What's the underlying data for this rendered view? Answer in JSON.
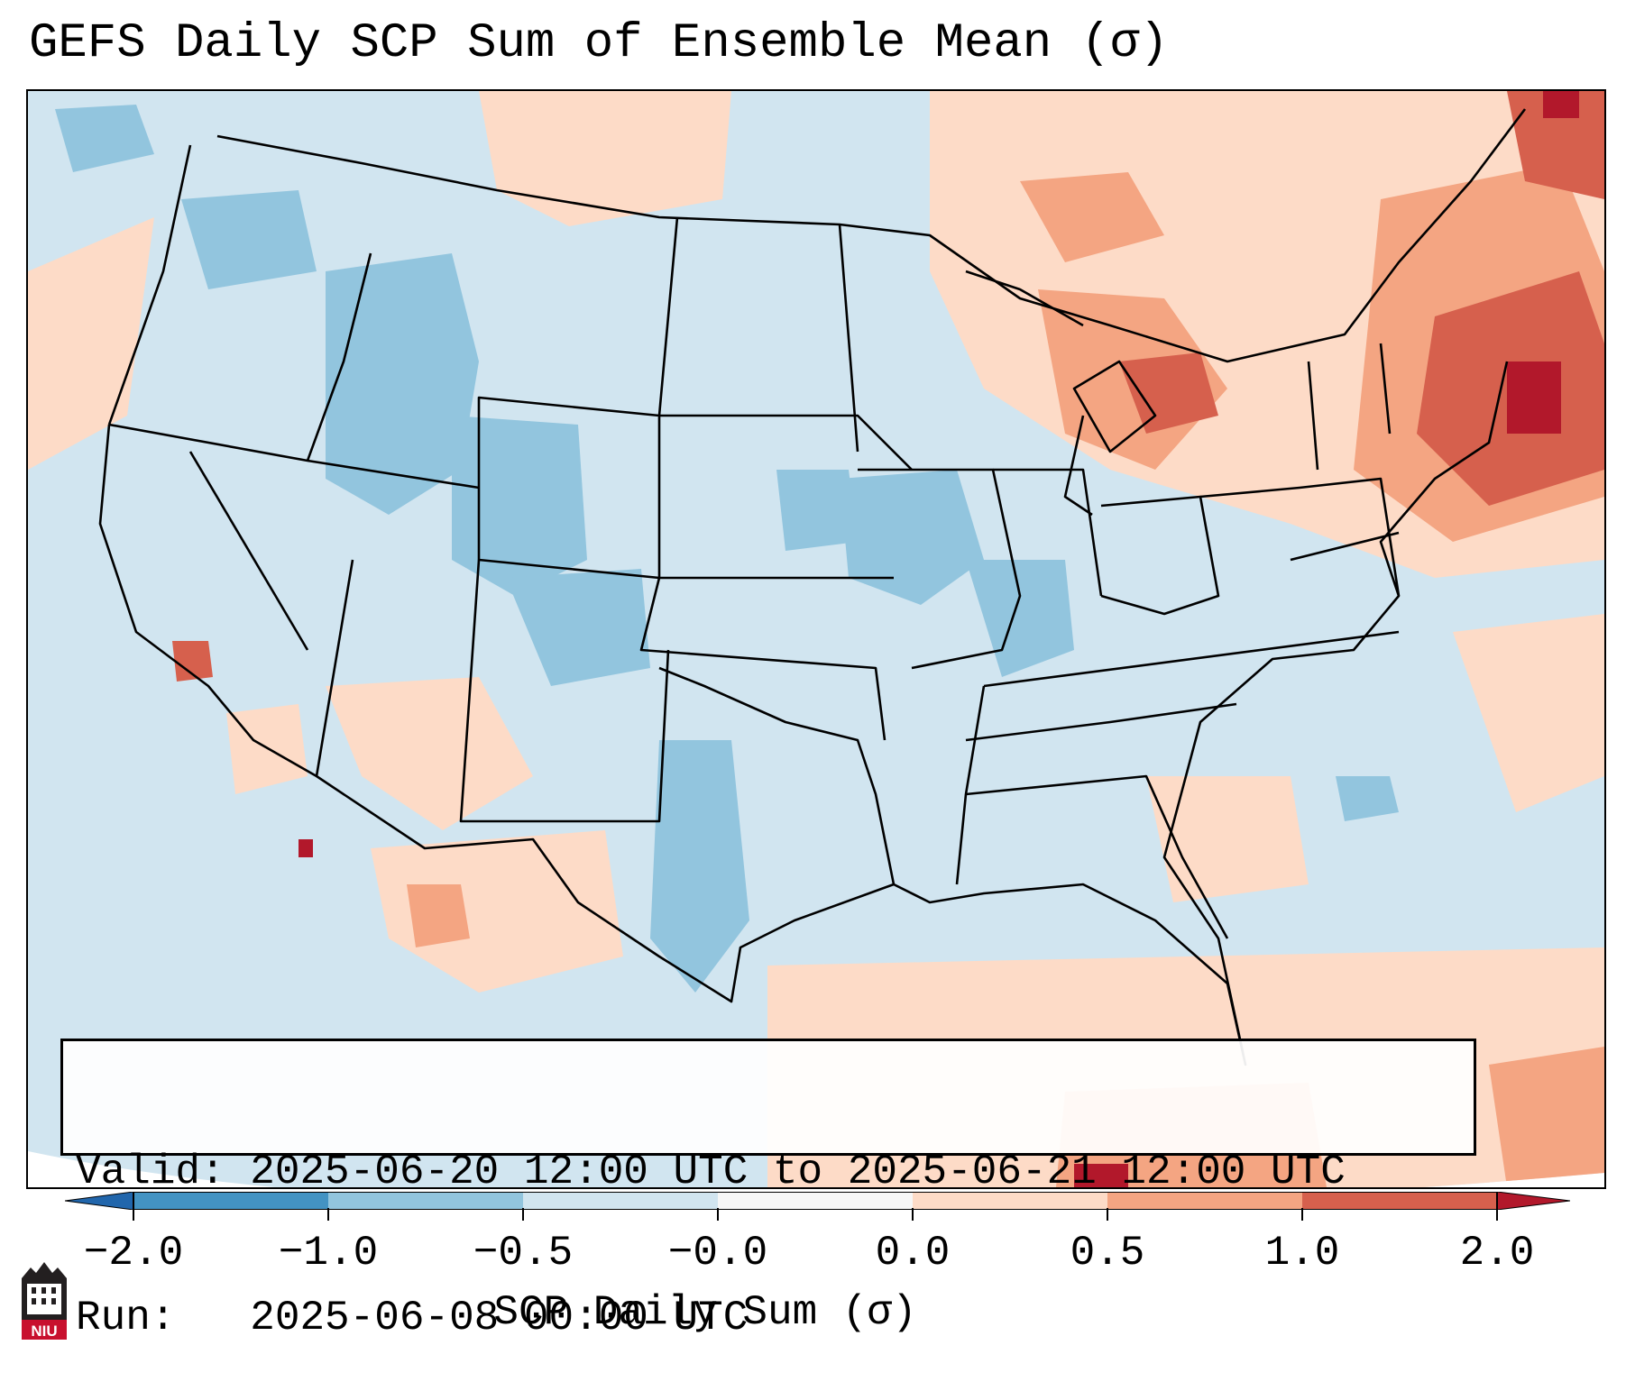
{
  "title": "GEFS Daily SCP Sum of Ensemble Mean (σ)",
  "valid_line": "Valid: 2025-06-20 12:00 UTC to 2025-06-21 12:00 UTC",
  "run_line": "Run:   2025-06-08 00:00 UTC",
  "colorbar": {
    "label": "SCP Daily Sum (σ)",
    "ticks": [
      "−2.0",
      "−1.0",
      "−0.5",
      "−0.0",
      "0.0",
      "0.5",
      "1.0",
      "2.0"
    ],
    "colors": [
      "#2166ac",
      "#4393c3",
      "#92c5de",
      "#d1e5f0",
      "#f7f7f7",
      "#fddbc7",
      "#f4a582",
      "#d6604d",
      "#b2182b"
    ]
  },
  "logo": {
    "text": "NIU",
    "icon": "niu-logo-icon"
  }
}
